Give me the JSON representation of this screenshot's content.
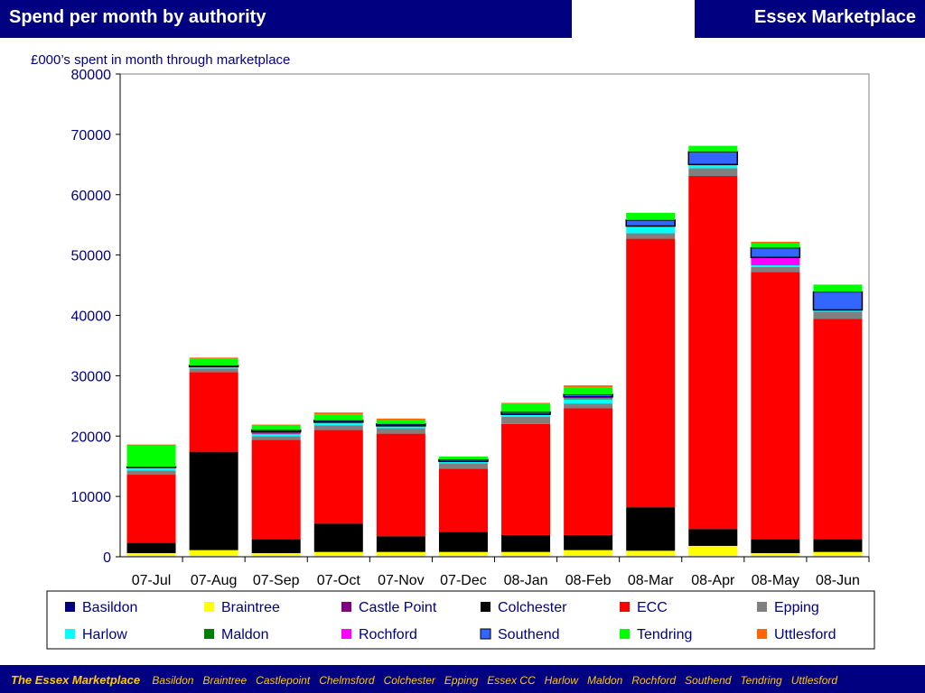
{
  "header": {
    "left_title": "Spend per month by authority",
    "right_title": "Essex Marketplace"
  },
  "footer": {
    "brand": "The Essex Marketplace",
    "items": [
      "Basildon",
      "Braintree",
      "Castlepoint",
      "Chelmsford",
      "Colchester",
      "Epping",
      "Essex CC",
      "Harlow",
      "Maldon",
      "Rochford",
      "Southend",
      "Tendring",
      "Uttlesford"
    ]
  },
  "chart_data": {
    "type": "bar",
    "stacked": true,
    "title": "£000’s spent in month through marketplace",
    "xlabel": "",
    "ylabel": "",
    "ylim": [
      0,
      80000
    ],
    "yticks": [
      0,
      10000,
      20000,
      30000,
      40000,
      50000,
      60000,
      70000,
      80000
    ],
    "grid": false,
    "legend_position": "bottom",
    "categories": [
      "07-Jul",
      "07-Aug",
      "07-Sep",
      "07-Oct",
      "07-Nov",
      "07-Dec",
      "08-Jan",
      "08-Feb",
      "08-Mar",
      "08-Apr",
      "08-May",
      "08-Jun"
    ],
    "series": [
      {
        "name": "Basildon",
        "color": "#000080",
        "values": [
          100,
          100,
          100,
          100,
          100,
          100,
          100,
          100,
          100,
          100,
          100,
          100
        ]
      },
      {
        "name": "Braintree",
        "color": "#ffff00",
        "values": [
          500,
          1000,
          500,
          700,
          700,
          700,
          700,
          1000,
          900,
          1700,
          500,
          700
        ]
      },
      {
        "name": "Castle Point",
        "color": "#800080",
        "values": [
          0,
          0,
          0,
          0,
          0,
          0,
          0,
          0,
          0,
          0,
          0,
          0
        ]
      },
      {
        "name": "Colchester",
        "color": "#000000",
        "values": [
          1700,
          16300,
          2300,
          4700,
          2600,
          3300,
          2800,
          2500,
          7200,
          2800,
          2300,
          2100
        ]
      },
      {
        "name": "ECC",
        "color": "#ff0000",
        "values": [
          11300,
          13200,
          16500,
          15500,
          17000,
          10500,
          18400,
          21000,
          44500,
          58500,
          44300,
          36500
        ]
      },
      {
        "name": "Epping",
        "color": "#808080",
        "values": [
          700,
          600,
          600,
          800,
          900,
          900,
          1200,
          800,
          900,
          1300,
          800,
          1200
        ]
      },
      {
        "name": "Harlow",
        "color": "#00ffff",
        "values": [
          400,
          200,
          300,
          400,
          300,
          200,
          300,
          700,
          1100,
          500,
          300,
          200
        ]
      },
      {
        "name": "Maldon",
        "color": "#008000",
        "values": [
          100,
          100,
          100,
          100,
          100,
          100,
          100,
          100,
          100,
          100,
          100,
          100
        ]
      },
      {
        "name": "Rochford",
        "color": "#ff00ff",
        "values": [
          0,
          0,
          300,
          0,
          0,
          0,
          0,
          300,
          0,
          0,
          1200,
          0
        ]
      },
      {
        "name": "Southend",
        "color": "#3366ff",
        "values": [
          100,
          200,
          300,
          300,
          300,
          300,
          400,
          400,
          1000,
          2100,
          1600,
          3000
        ]
      },
      {
        "name": "Tendring",
        "color": "#00ff00",
        "values": [
          3500,
          1200,
          700,
          1000,
          600,
          500,
          1300,
          1200,
          1200,
          1000,
          700,
          1200
        ]
      },
      {
        "name": "Uttlesford",
        "color": "#ff6600",
        "values": [
          200,
          100,
          200,
          300,
          300,
          0,
          200,
          300,
          0,
          0,
          300,
          0
        ]
      }
    ]
  }
}
